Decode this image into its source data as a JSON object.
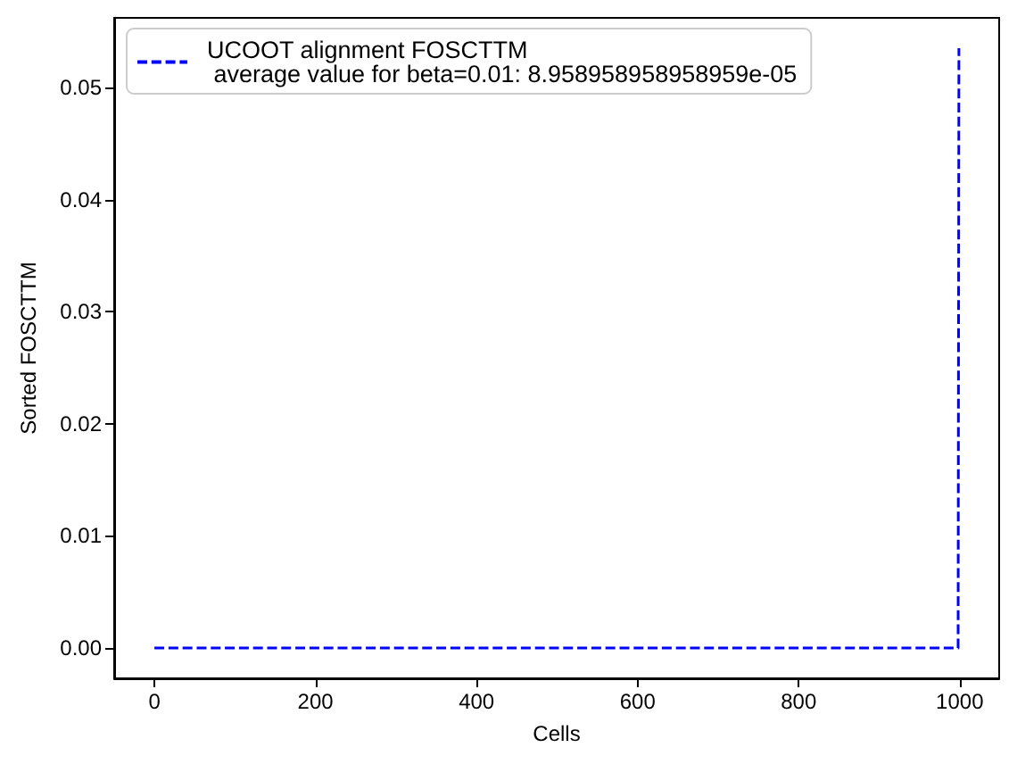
{
  "chart_data": {
    "type": "line",
    "xlabel": "Cells",
    "ylabel": "Sorted FOSCTTM",
    "x": [
      0,
      998,
      999
    ],
    "series": [
      {
        "name": "UCOOT alignment FOSCTTM\n average value for beta=0.01: 8.958958958958959e-05",
        "color": "#0000ff",
        "values": [
          0,
          0,
          0.0535
        ]
      }
    ],
    "xlim": [
      -49.95,
      1048.95
    ],
    "xticks": [
      0,
      200,
      400,
      600,
      800,
      1000
    ],
    "ylim": [
      -0.0027,
      0.0562
    ],
    "yticks": [
      {
        "value": 0,
        "label": "0.00"
      },
      {
        "value": 0.01,
        "label": "0.01"
      },
      {
        "value": 0.02,
        "label": "0.02"
      },
      {
        "value": 0.03,
        "label": "0.03"
      },
      {
        "value": 0.04,
        "label": "0.04"
      },
      {
        "value": 0.05,
        "label": "0.05"
      }
    ],
    "grid": false,
    "legend": "top left",
    "marker": "none",
    "line_style": "dashed"
  }
}
